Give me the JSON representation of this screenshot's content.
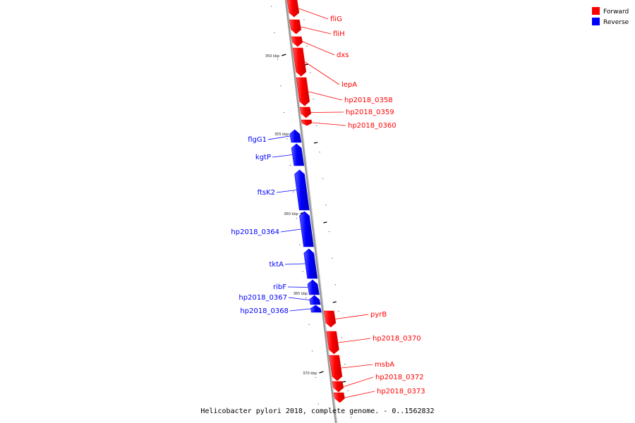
{
  "colors": {
    "forward": "#ff0000",
    "reverse": "#0000ff",
    "backbone": "#9a9a9a"
  },
  "legend": [
    {
      "label": "Forward",
      "color": "#ff0000"
    },
    {
      "label": "Reverse",
      "color": "#0000ff"
    }
  ],
  "caption": "Helicobacter pylori 2018, complete genome. - 0..1562832",
  "tick_labels": [
    "350 kbp",
    "355 kbp",
    "360 kbp",
    "365 kbp",
    "370 kbp"
  ],
  "genes": [
    {
      "name": "fliG",
      "strand": "forward"
    },
    {
      "name": "fliH",
      "strand": "forward"
    },
    {
      "name": "dxs",
      "strand": "forward"
    },
    {
      "name": "lepA",
      "strand": "forward"
    },
    {
      "name": "hp2018_0358",
      "strand": "forward"
    },
    {
      "name": "hp2018_0359",
      "strand": "forward"
    },
    {
      "name": "hp2018_0360",
      "strand": "forward"
    },
    {
      "name": "flgG1",
      "strand": "reverse"
    },
    {
      "name": "kgtP",
      "strand": "reverse"
    },
    {
      "name": "ftsK2",
      "strand": "reverse"
    },
    {
      "name": "hp2018_0364",
      "strand": "reverse"
    },
    {
      "name": "tktA",
      "strand": "reverse"
    },
    {
      "name": "ribF",
      "strand": "reverse"
    },
    {
      "name": "hp2018_0367",
      "strand": "reverse"
    },
    {
      "name": "hp2018_0368",
      "strand": "reverse"
    },
    {
      "name": "pyrB",
      "strand": "forward"
    },
    {
      "name": "hp2018_0370",
      "strand": "forward"
    },
    {
      "name": "msbA",
      "strand": "forward"
    },
    {
      "name": "hp2018_0372",
      "strand": "forward"
    },
    {
      "name": "hp2018_0373",
      "strand": "forward"
    }
  ]
}
